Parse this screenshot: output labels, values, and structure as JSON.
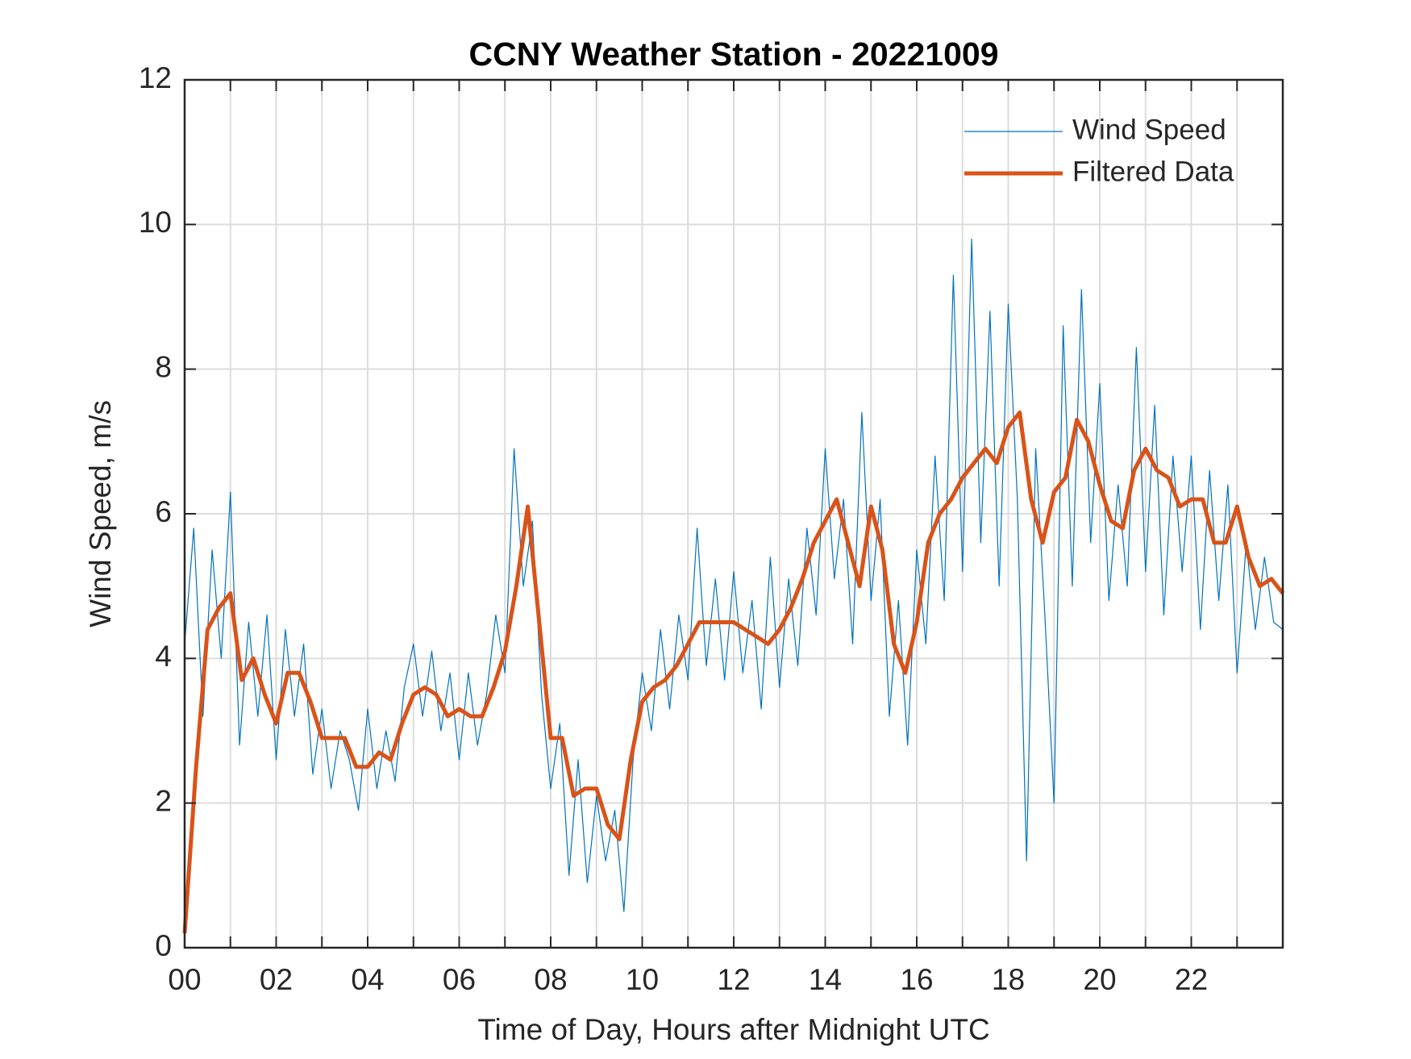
{
  "chart_data": {
    "type": "line",
    "title": "CCNY Weather Station - 20221009",
    "x_label": "Time of Day, Hours after Midnight UTC",
    "y_label": "Wind Speed, m/s",
    "xlim": [
      0,
      24
    ],
    "ylim": [
      0,
      12
    ],
    "xticks": [
      {
        "value": 0,
        "label": "00"
      },
      {
        "value": 2,
        "label": "02"
      },
      {
        "value": 4,
        "label": "04"
      },
      {
        "value": 6,
        "label": "06"
      },
      {
        "value": 8,
        "label": "08"
      },
      {
        "value": 10,
        "label": "10"
      },
      {
        "value": 12,
        "label": "12"
      },
      {
        "value": 14,
        "label": "14"
      },
      {
        "value": 16,
        "label": "16"
      },
      {
        "value": 18,
        "label": "18"
      },
      {
        "value": 20,
        "label": "20"
      },
      {
        "value": 22,
        "label": "22"
      }
    ],
    "x_minor_ticks": [
      1,
      3,
      5,
      7,
      9,
      11,
      13,
      15,
      17,
      19,
      21,
      23
    ],
    "yticks": [
      0,
      2,
      4,
      6,
      8,
      10,
      12
    ],
    "grid": true,
    "legend": "upper-right",
    "series": [
      {
        "name": "Wind Speed",
        "color": "#0072bd",
        "width": 1.2,
        "x": [
          0,
          0.2,
          0.4,
          0.6,
          0.8,
          1,
          1.2,
          1.4,
          1.6,
          1.8,
          2,
          2.2,
          2.4,
          2.6,
          2.8,
          3,
          3.2,
          3.4,
          3.6,
          3.8,
          4,
          4.2,
          4.4,
          4.6,
          4.8,
          5,
          5.2,
          5.4,
          5.6,
          5.8,
          6,
          6.2,
          6.4,
          6.6,
          6.8,
          7,
          7.2,
          7.4,
          7.6,
          7.8,
          8,
          8.2,
          8.4,
          8.6,
          8.8,
          9,
          9.2,
          9.4,
          9.6,
          9.8,
          10,
          10.2,
          10.4,
          10.6,
          10.8,
          11,
          11.2,
          11.4,
          11.6,
          11.8,
          12,
          12.2,
          12.4,
          12.6,
          12.8,
          13,
          13.2,
          13.4,
          13.6,
          13.8,
          14,
          14.2,
          14.4,
          14.6,
          14.8,
          15,
          15.2,
          15.4,
          15.6,
          15.8,
          16,
          16.2,
          16.4,
          16.6,
          16.8,
          17,
          17.2,
          17.4,
          17.6,
          17.8,
          18,
          18.2,
          18.4,
          18.6,
          18.8,
          19,
          19.2,
          19.4,
          19.6,
          19.8,
          20,
          20.2,
          20.4,
          20.6,
          20.8,
          21,
          21.2,
          21.4,
          21.6,
          21.8,
          22,
          22.2,
          22.4,
          22.6,
          22.8,
          23,
          23.2,
          23.4,
          23.6,
          23.8,
          24
        ],
        "values": [
          4.2,
          5.8,
          3.2,
          5.5,
          4.0,
          6.3,
          2.8,
          4.5,
          3.2,
          4.6,
          2.6,
          4.4,
          3.2,
          4.2,
          2.4,
          3.3,
          2.2,
          3.0,
          2.6,
          1.9,
          3.3,
          2.2,
          3.0,
          2.3,
          3.6,
          4.2,
          3.2,
          4.1,
          3.0,
          3.8,
          2.6,
          3.8,
          2.8,
          3.5,
          4.6,
          3.8,
          6.9,
          5.0,
          5.9,
          3.5,
          2.2,
          3.1,
          1.0,
          2.6,
          0.9,
          2.1,
          1.2,
          1.9,
          0.5,
          2.6,
          3.8,
          3.0,
          4.4,
          3.3,
          4.6,
          3.7,
          5.8,
          3.9,
          5.1,
          3.7,
          5.2,
          3.8,
          4.8,
          3.3,
          5.4,
          3.6,
          5.1,
          3.9,
          5.8,
          4.6,
          6.9,
          5.1,
          6.2,
          4.2,
          7.4,
          4.8,
          6.2,
          3.2,
          4.8,
          2.8,
          5.5,
          4.2,
          6.8,
          4.8,
          9.3,
          5.2,
          9.8,
          5.6,
          8.8,
          5.0,
          8.9,
          6.2,
          1.2,
          6.9,
          4.6,
          2.0,
          8.6,
          5.0,
          9.1,
          5.6,
          7.8,
          4.8,
          6.4,
          5.0,
          8.3,
          5.2,
          7.5,
          4.6,
          6.8,
          5.2,
          6.8,
          4.4,
          6.6,
          4.8,
          6.4,
          3.8,
          5.6,
          4.4,
          5.4,
          4.5,
          4.4
        ]
      },
      {
        "name": "Filtered Data",
        "color": "#d95319",
        "width": 5,
        "x": [
          0,
          0.25,
          0.5,
          0.75,
          1,
          1.25,
          1.5,
          1.75,
          2,
          2.25,
          2.5,
          2.75,
          3,
          3.25,
          3.5,
          3.75,
          4,
          4.25,
          4.5,
          4.75,
          5,
          5.25,
          5.5,
          5.75,
          6,
          6.25,
          6.5,
          6.75,
          7,
          7.25,
          7.5,
          7.75,
          8,
          8.25,
          8.5,
          8.75,
          9,
          9.25,
          9.5,
          9.75,
          10,
          10.25,
          10.5,
          10.75,
          11,
          11.25,
          11.5,
          11.75,
          12,
          12.25,
          12.5,
          12.75,
          13,
          13.25,
          13.5,
          13.75,
          14,
          14.25,
          14.5,
          14.75,
          15,
          15.25,
          15.5,
          15.75,
          16,
          16.25,
          16.5,
          16.75,
          17,
          17.25,
          17.5,
          17.75,
          18,
          18.25,
          18.5,
          18.75,
          19,
          19.25,
          19.5,
          19.75,
          20,
          20.25,
          20.5,
          20.75,
          21,
          21.25,
          21.5,
          21.75,
          22,
          22.25,
          22.5,
          22.75,
          23,
          23.25,
          23.5,
          23.75,
          24
        ],
        "values": [
          0.2,
          2.5,
          4.4,
          4.7,
          4.9,
          3.7,
          4.0,
          3.5,
          3.1,
          3.8,
          3.8,
          3.4,
          2.9,
          2.9,
          2.9,
          2.5,
          2.5,
          2.7,
          2.6,
          3.1,
          3.5,
          3.6,
          3.5,
          3.2,
          3.3,
          3.2,
          3.2,
          3.6,
          4.1,
          5.0,
          6.1,
          4.5,
          2.9,
          2.9,
          2.1,
          2.2,
          2.2,
          1.7,
          1.5,
          2.6,
          3.4,
          3.6,
          3.7,
          3.9,
          4.2,
          4.5,
          4.5,
          4.5,
          4.5,
          4.4,
          4.3,
          4.2,
          4.4,
          4.7,
          5.1,
          5.6,
          5.9,
          6.2,
          5.6,
          5.0,
          6.1,
          5.5,
          4.2,
          3.8,
          4.5,
          5.6,
          6.0,
          6.2,
          6.5,
          6.7,
          6.9,
          6.7,
          7.2,
          7.4,
          6.2,
          5.6,
          6.3,
          6.5,
          7.3,
          7.0,
          6.4,
          5.9,
          5.8,
          6.6,
          6.9,
          6.6,
          6.5,
          6.1,
          6.2,
          6.2,
          5.6,
          5.6,
          6.1,
          5.4,
          5.0,
          5.1,
          4.9
        ]
      }
    ]
  }
}
